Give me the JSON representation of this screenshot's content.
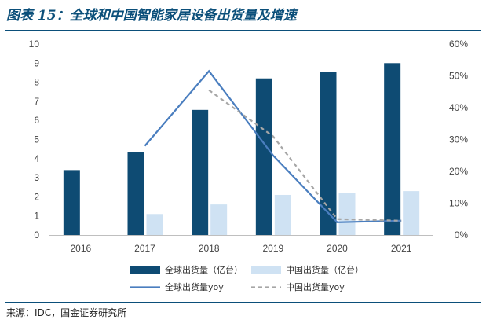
{
  "header": {
    "title": "图表 15：全球和中国智能家居设备出货量及增速"
  },
  "footer": {
    "source": "来源：IDC，国金证券研究所"
  },
  "colors": {
    "title_text": "#0b4f7a",
    "rule": "#0b4f7a",
    "global_bar": "#0e4b73",
    "china_bar": "#cfe2f3",
    "global_yoy": "#4a7ebf",
    "china_yoy": "#a6a6a6"
  },
  "chart_data": {
    "type": "bar",
    "categories": [
      "2016",
      "2017",
      "2018",
      "2019",
      "2020",
      "2021"
    ],
    "series": [
      {
        "name": "全球出货量（亿台）",
        "kind": "bar",
        "axis": "left",
        "color": "#0e4b73",
        "values": [
          3.4,
          4.35,
          6.55,
          8.2,
          8.55,
          9.0
        ]
      },
      {
        "name": "中国出货量（亿台）",
        "kind": "bar",
        "axis": "left",
        "color": "#cfe2f3",
        "values": [
          null,
          1.1,
          1.6,
          2.1,
          2.2,
          2.3
        ]
      },
      {
        "name": "全球出货量yoy",
        "kind": "line",
        "axis": "right",
        "color": "#4a7ebf",
        "dash": false,
        "values": [
          null,
          0.28,
          0.515,
          0.25,
          0.04,
          0.045
        ]
      },
      {
        "name": "中国出货量yoy",
        "kind": "line",
        "axis": "right",
        "color": "#a6a6a6",
        "dash": true,
        "values": [
          null,
          null,
          0.455,
          0.31,
          0.05,
          0.045
        ]
      }
    ],
    "y_left": {
      "min": 0,
      "max": 10,
      "ticks": [
        "0",
        "1",
        "2",
        "3",
        "4",
        "5",
        "6",
        "7",
        "8",
        "9",
        "10"
      ]
    },
    "y_right": {
      "min": 0,
      "max": 0.6,
      "ticks": [
        "0%",
        "10%",
        "20%",
        "30%",
        "40%",
        "50%",
        "60%"
      ]
    },
    "grid": false,
    "legend_position": "bottom"
  }
}
